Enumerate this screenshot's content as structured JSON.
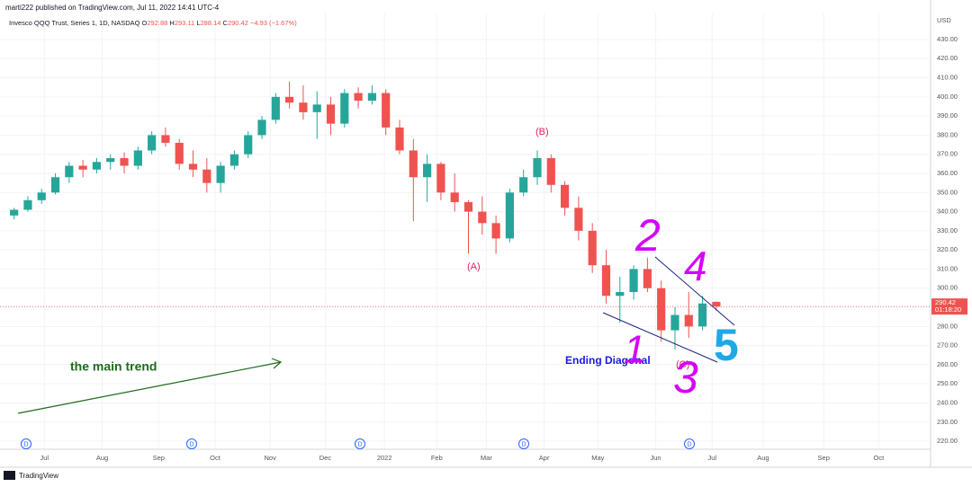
{
  "chart_data": {
    "type": "candlestick",
    "published": "marti222 published on TradingView.com, Jul 11, 2022 14:41 UTC-4",
    "symbol": "Invesco QQQ Trust, Series 1, 1D, NASDAQ",
    "ohlc": [
      {
        "label": "O",
        "value": 292.88
      },
      {
        "label": "H",
        "value": 293.11
      },
      {
        "label": "L",
        "value": 288.14
      },
      {
        "label": "C",
        "value": 290.42
      }
    ],
    "change": "−4.93 (−1.67%)",
    "currency": "USD",
    "countdown": "01:18:20",
    "footer": "TradingView",
    "events": [
      "D",
      "D",
      "D",
      "D",
      "D"
    ],
    "annotations": [
      "(A)",
      "(B)",
      "(C)",
      "Ending Diagonal",
      "the main trend",
      "1",
      "2",
      "3",
      "4",
      "5"
    ],
    "up_color": "#26a69a",
    "down_color": "#ef5350",
    "grid": true,
    "open": [
      338,
      341,
      346,
      350,
      358,
      364,
      362,
      366,
      368,
      364,
      372,
      380,
      376,
      365,
      362,
      355,
      364,
      370,
      380,
      388,
      400,
      397,
      392,
      396,
      386,
      402,
      398,
      402,
      384,
      372,
      358,
      365,
      350,
      345,
      340,
      334,
      326,
      350,
      358,
      368,
      354,
      342,
      330,
      312,
      296,
      298,
      310,
      300,
      278,
      286,
      280,
      292.88
    ],
    "high": [
      342,
      348,
      352,
      360,
      366,
      367,
      368,
      370,
      371,
      374,
      382,
      384,
      378,
      372,
      368,
      366,
      372,
      382,
      390,
      402,
      408,
      406,
      403,
      400,
      404,
      405,
      406,
      404,
      388,
      378,
      370,
      366,
      360,
      346,
      348,
      338,
      352,
      362,
      372,
      370,
      356,
      348,
      334,
      320,
      306,
      312,
      316,
      304,
      290,
      298,
      296,
      293.11
    ],
    "low": [
      336,
      340,
      344,
      349,
      355,
      358,
      360,
      362,
      360,
      362,
      370,
      374,
      362,
      358,
      350,
      350,
      362,
      368,
      378,
      386,
      394,
      388,
      378,
      380,
      384,
      394,
      396,
      380,
      370,
      335,
      345,
      346,
      340,
      318,
      328,
      318,
      324,
      348,
      354,
      350,
      338,
      325,
      308,
      292,
      282,
      294,
      298,
      272,
      268,
      274,
      278,
      288.14
    ],
    "close": [
      341,
      346,
      350,
      358,
      364,
      362,
      366,
      368,
      364,
      372,
      380,
      376,
      365,
      362,
      355,
      364,
      370,
      380,
      388,
      400,
      397,
      392,
      396,
      386,
      402,
      398,
      402,
      384,
      372,
      358,
      365,
      350,
      345,
      340,
      334,
      326,
      350,
      358,
      368,
      354,
      342,
      330,
      312,
      296,
      298,
      310,
      300,
      278,
      286,
      280,
      292,
      290.42
    ],
    "xlim": [
      -0.5,
      66.5
    ],
    "xticks": [
      {
        "value": 2.2,
        "label": "Jul"
      },
      {
        "value": 6.4,
        "label": "Aug"
      },
      {
        "value": 10.5,
        "label": "Sep"
      },
      {
        "value": 14.6,
        "label": "Oct"
      },
      {
        "value": 18.6,
        "label": "Nov"
      },
      {
        "value": 22.6,
        "label": "Dec"
      },
      {
        "value": 26.9,
        "label": "2022"
      },
      {
        "value": 30.7,
        "label": "Feb"
      },
      {
        "value": 34.3,
        "label": "Mar"
      },
      {
        "value": 38.5,
        "label": "Apr"
      },
      {
        "value": 42.4,
        "label": "May"
      },
      {
        "value": 46.6,
        "label": "Jun"
      },
      {
        "value": 50.7,
        "label": "Jul"
      },
      {
        "value": 54.4,
        "label": "Aug"
      },
      {
        "value": 58.8,
        "label": "Sep"
      },
      {
        "value": 62.8,
        "label": "Oct"
      }
    ],
    "ylim": [
      215.8,
      443.6
    ],
    "yticks": [
      {
        "value": 220,
        "label": "220.00"
      },
      {
        "value": 230,
        "label": "230.00"
      },
      {
        "value": 240,
        "label": "240.00"
      },
      {
        "value": 250,
        "label": "250.00"
      },
      {
        "value": 260,
        "label": "260.00"
      },
      {
        "value": 270,
        "label": "270.00"
      },
      {
        "value": 280,
        "label": "280.00"
      },
      {
        "value": 290,
        "label": "290.00"
      },
      {
        "value": 300,
        "label": "300.00"
      },
      {
        "value": 310,
        "label": "310.00"
      },
      {
        "value": 320,
        "label": "320.00"
      },
      {
        "value": 330,
        "label": "330.00"
      },
      {
        "value": 340,
        "label": "340.00"
      },
      {
        "value": 350,
        "label": "350.00"
      },
      {
        "value": 360,
        "label": "360.00"
      },
      {
        "value": 370,
        "label": "370.00"
      },
      {
        "value": 380,
        "label": "380.00"
      },
      {
        "value": 390,
        "label": "390.00"
      },
      {
        "value": 400,
        "label": "400.00"
      },
      {
        "value": 410,
        "label": "410.00"
      },
      {
        "value": 420,
        "label": "420.00"
      },
      {
        "value": 430,
        "label": "430.00"
      }
    ]
  }
}
